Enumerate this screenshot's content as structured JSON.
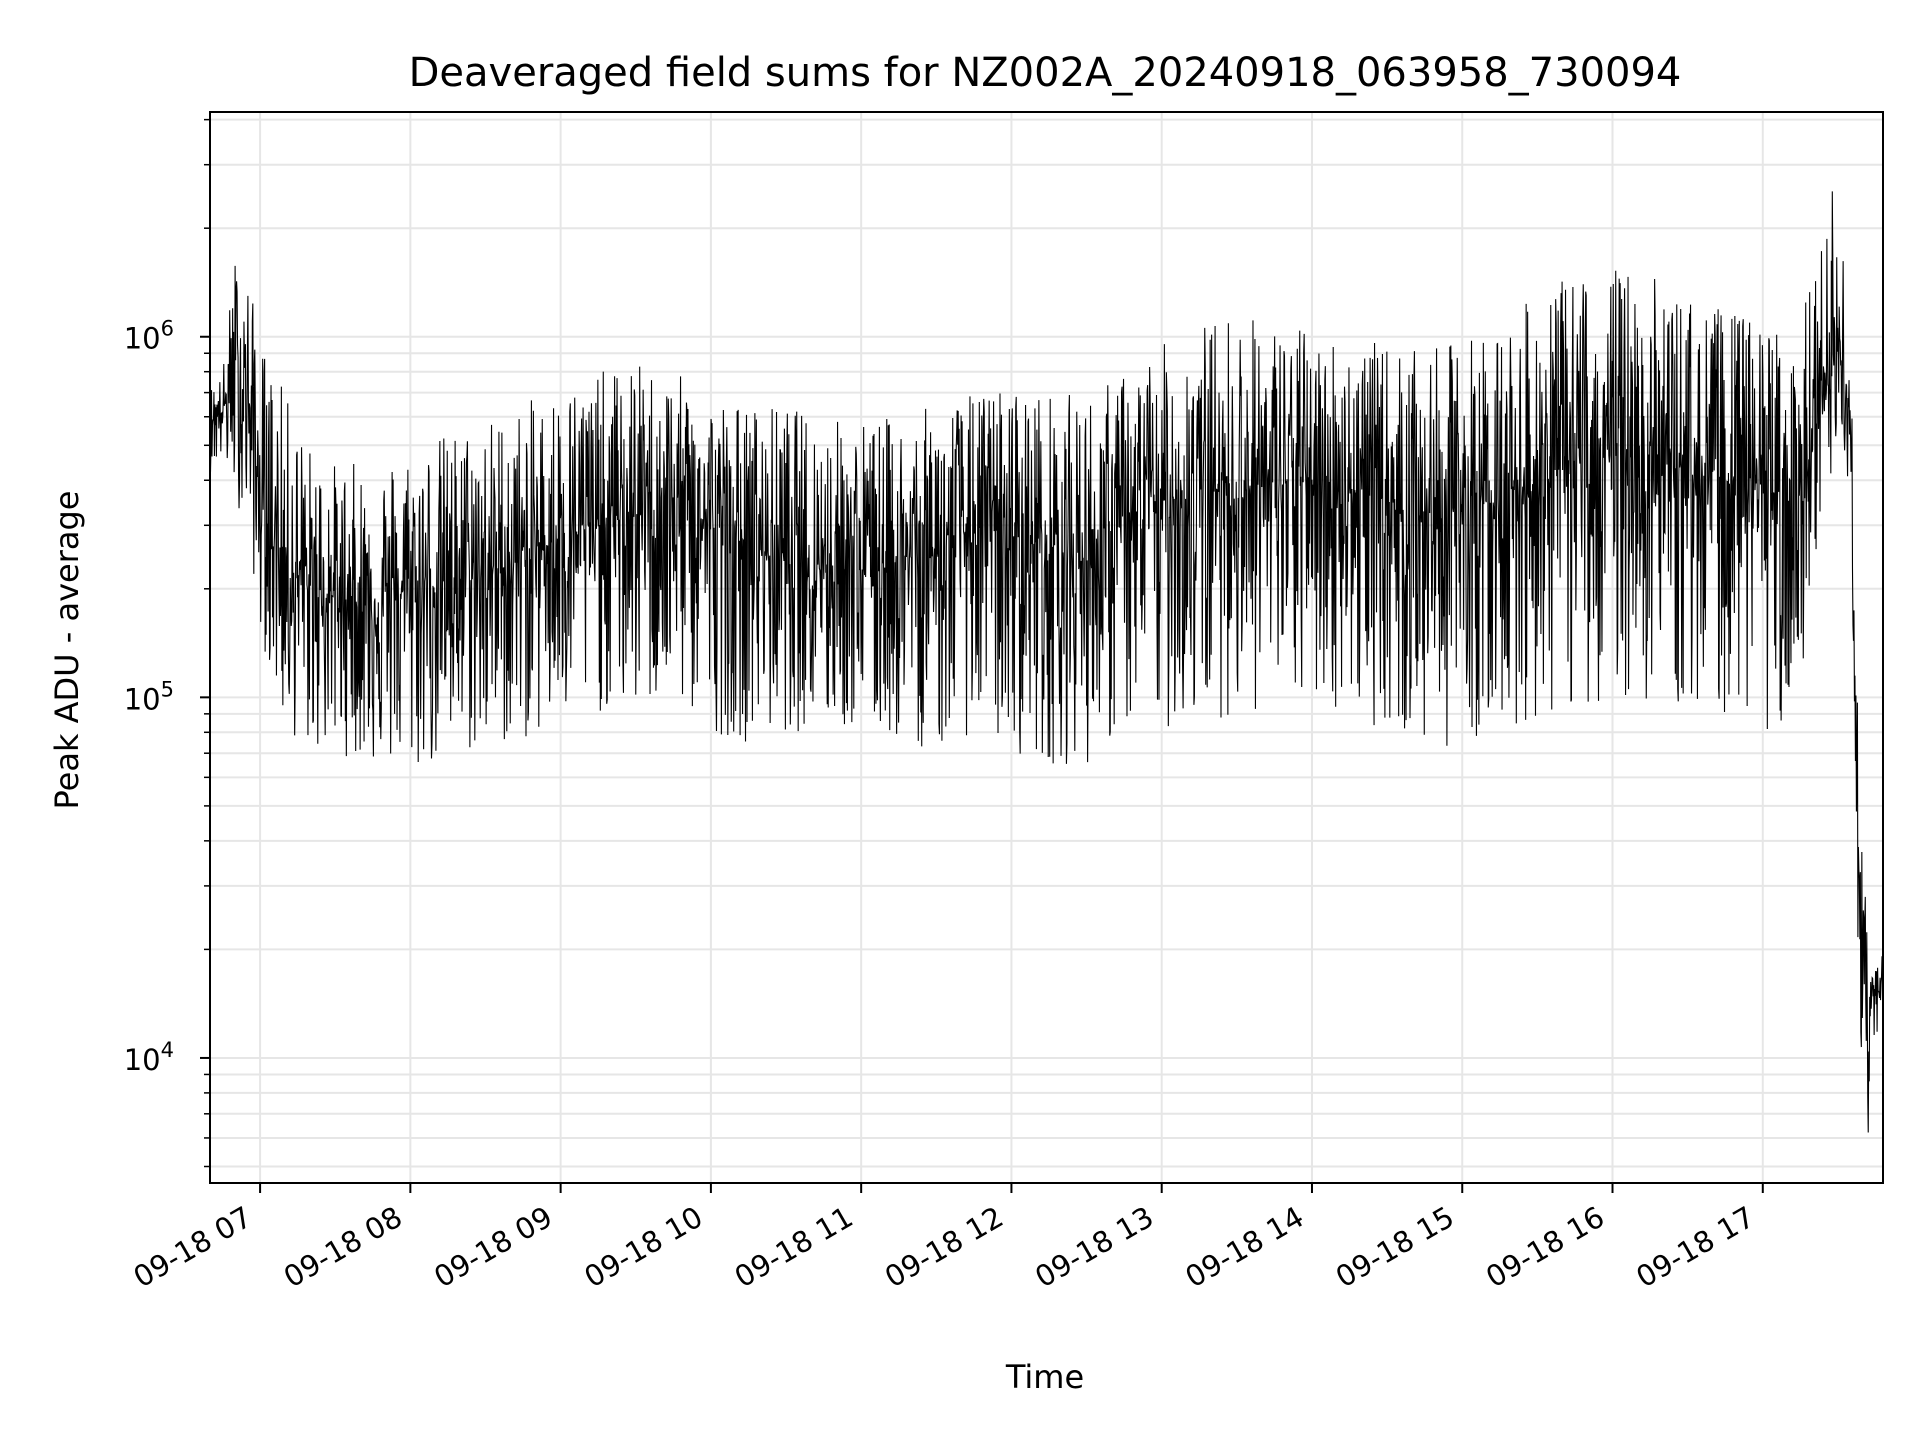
{
  "chart_data": {
    "type": "line",
    "title": "Deaveraged field sums for NZ002A_20240918_063958_730094",
    "xlabel": "Time",
    "ylabel": "Peak ADU - average",
    "y_scale": "log",
    "ylim": [
      4500,
      4200000
    ],
    "y_major_ticks": [
      {
        "value": 10000,
        "mantissa": "10",
        "exponent": "4"
      },
      {
        "value": 100000,
        "mantissa": "10",
        "exponent": "5"
      },
      {
        "value": 1000000,
        "mantissa": "10",
        "exponent": "6"
      }
    ],
    "xlim": [
      "2024-09-18 06:40",
      "2024-09-18 17:48"
    ],
    "x_ticks": [
      {
        "time": "2024-09-18 07:00",
        "label": "09-18 07"
      },
      {
        "time": "2024-09-18 08:00",
        "label": "09-18 08"
      },
      {
        "time": "2024-09-18 09:00",
        "label": "09-18 09"
      },
      {
        "time": "2024-09-18 10:00",
        "label": "09-18 10"
      },
      {
        "time": "2024-09-18 11:00",
        "label": "09-18 11"
      },
      {
        "time": "2024-09-18 12:00",
        "label": "09-18 12"
      },
      {
        "time": "2024-09-18 13:00",
        "label": "09-18 13"
      },
      {
        "time": "2024-09-18 14:00",
        "label": "09-18 14"
      },
      {
        "time": "2024-09-18 15:00",
        "label": "09-18 15"
      },
      {
        "time": "2024-09-18 16:00",
        "label": "09-18 16"
      },
      {
        "time": "2024-09-18 17:00",
        "label": "09-18 17"
      }
    ],
    "grid": true,
    "line_color": "#000000",
    "grid_color": "#e6e6e6",
    "series": [
      {
        "x": [
          "2024-09-18 06:40",
          "2024-09-18 06:45",
          "2024-09-18 06:50",
          "2024-09-18 06:55",
          "2024-09-18 07:00",
          "2024-09-18 07:10",
          "2024-09-18 07:20",
          "2024-09-18 07:30",
          "2024-09-18 07:45",
          "2024-09-18 08:00",
          "2024-09-18 08:15",
          "2024-09-18 08:30",
          "2024-09-18 08:45",
          "2024-09-18 09:00",
          "2024-09-18 09:15",
          "2024-09-18 09:30",
          "2024-09-18 09:45",
          "2024-09-18 10:00",
          "2024-09-18 10:15",
          "2024-09-18 10:30",
          "2024-09-18 10:45",
          "2024-09-18 11:00",
          "2024-09-18 11:15",
          "2024-09-18 11:30",
          "2024-09-18 11:45",
          "2024-09-18 12:00",
          "2024-09-18 12:15",
          "2024-09-18 12:30",
          "2024-09-18 12:45",
          "2024-09-18 13:00",
          "2024-09-18 13:15",
          "2024-09-18 13:30",
          "2024-09-18 13:45",
          "2024-09-18 14:00",
          "2024-09-18 14:15",
          "2024-09-18 14:30",
          "2024-09-18 14:45",
          "2024-09-18 15:00",
          "2024-09-18 15:15",
          "2024-09-18 15:30",
          "2024-09-18 15:45",
          "2024-09-18 16:00",
          "2024-09-18 16:15",
          "2024-09-18 16:30",
          "2024-09-18 16:45",
          "2024-09-18 17:00",
          "2024-09-18 17:15",
          "2024-09-18 17:30",
          "2024-09-18 17:35",
          "2024-09-18 17:37",
          "2024-09-18 17:39",
          "2024-09-18 17:42",
          "2024-09-18 17:45",
          "2024-09-18 17:48"
        ],
        "median": [
          600000,
          620000,
          800000,
          700000,
          350000,
          230000,
          200000,
          190000,
          180000,
          200000,
          210000,
          220000,
          240000,
          280000,
          300000,
          320000,
          330000,
          300000,
          260000,
          250000,
          240000,
          230000,
          240000,
          250000,
          300000,
          280000,
          260000,
          240000,
          300000,
          350000,
          370000,
          380000,
          390000,
          400000,
          380000,
          350000,
          320000,
          340000,
          360000,
          400000,
          450000,
          480000,
          460000,
          420000,
          400000,
          380000,
          350000,
          900000,
          600000,
          100000,
          20000,
          13000,
          15000,
          16000
        ],
        "lo": [
          420000,
          450000,
          350000,
          300000,
          150000,
          80000,
          70000,
          70000,
          65000,
          60000,
          65000,
          70000,
          75000,
          80000,
          90000,
          90000,
          95000,
          80000,
          75000,
          80000,
          80000,
          80000,
          75000,
          70000,
          80000,
          70000,
          65000,
          65000,
          80000,
          80000,
          85000,
          90000,
          90000,
          95000,
          90000,
          80000,
          70000,
          75000,
          80000,
          85000,
          90000,
          100000,
          95000,
          90000,
          90000,
          80000,
          80000,
          500000,
          300000,
          40000,
          10500,
          6000,
          11000,
          12500
        ],
        "hi": [
          730000,
          800000,
          1700000,
          1500000,
          1000000,
          700000,
          500000,
          450000,
          450000,
          500000,
          550000,
          600000,
          650000,
          750000,
          800000,
          850000,
          800000,
          700000,
          650000,
          650000,
          600000,
          600000,
          600000,
          650000,
          700000,
          750000,
          700000,
          700000,
          800000,
          950000,
          1100000,
          1200000,
          1100000,
          1050000,
          1000000,
          950000,
          900000,
          1000000,
          1100000,
          1300000,
          1500000,
          1600000,
          1500000,
          1300000,
          1200000,
          1100000,
          1100000,
          3000000,
          1200000,
          180000,
          45000,
          24000,
          22000,
          23000
        ]
      }
    ]
  }
}
